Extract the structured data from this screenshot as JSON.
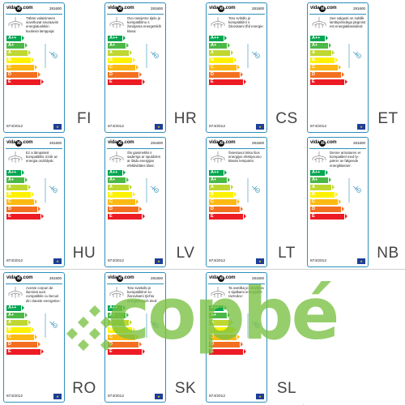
{
  "labels": [
    {
      "lang": "FI",
      "code": "281600",
      "desc": "Tähän valaisimeen soveltuvat seuraaviin energialuokkiin kuuluvia lamppuja:"
    },
    {
      "lang": "HR",
      "code": "281600",
      "desc": "Ovo rasvjetno tijelo je kompatibilno s žaruljama energetskih klasa:"
    },
    {
      "lang": "CS",
      "code": "281600",
      "desc": "Toto svítidlo je kompatibilní s žárovkami tříd energie:"
    },
    {
      "lang": "ET",
      "code": "281600",
      "desc": "See valgusti on sobilik lambipirnidega järgmist est energiaklassidest:"
    },
    {
      "lang": "HU",
      "code": "281600",
      "desc": "Ez a lámpatest kompatibilis izzók az energia osztályok:"
    },
    {
      "lang": "LV",
      "code": "281600",
      "desc": "Šis gaismeklis ir saderīgs ar spuldzēm ar šādu energijas efektivitātes klasi:"
    },
    {
      "lang": "LT",
      "code": "281600",
      "desc": "Šviestuvui tinka šios energijos efektyvumo klasės lemputės:"
    },
    {
      "lang": "NB",
      "code": "281600",
      "desc": "Denne armaturen er kompatibel med ly-pærer av følgende energiklasser:"
    },
    {
      "lang": "RO",
      "code": "281600",
      "desc": "Aceste corpuri de iluminat sunt compatibile cu becuri din clasele energetice:"
    },
    {
      "lang": "SK",
      "code": "281600",
      "desc": "Toto svietidlo je kompatibilné so žiarovkami týchto energetických tried:"
    },
    {
      "lang": "SL",
      "code": "281600",
      "desc": "Ta svetilka je združljiva s sijalkami energijskih razredov:"
    }
  ],
  "energy_classes": [
    "A++",
    "A+",
    "A",
    "B",
    "C",
    "D",
    "E"
  ],
  "brand": {
    "prefix": "vida",
    "mark": "xl",
    "suffix": ".com"
  },
  "regulation": "874/2012",
  "watermark_text": "copbé",
  "colors": {
    "border": "#2e8fb8",
    "classes": [
      "#00a651",
      "#4cb847",
      "#bfd730",
      "#fff200",
      "#fdb913",
      "#f37021",
      "#ed1c24"
    ],
    "watermark": "#79c043"
  }
}
